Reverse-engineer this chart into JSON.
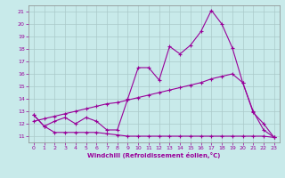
{
  "xlabel": "Windchill (Refroidissement éolien,°C)",
  "background_color": "#c8eaea",
  "line_color": "#990099",
  "grid_color": "#aacaca",
  "x_data": [
    0,
    1,
    2,
    3,
    4,
    5,
    6,
    7,
    8,
    9,
    10,
    11,
    12,
    13,
    14,
    15,
    16,
    17,
    18,
    19,
    20,
    21,
    22,
    23
  ],
  "y_upper": [
    12.7,
    11.8,
    12.2,
    12.5,
    12.0,
    12.5,
    12.2,
    11.5,
    11.5,
    14.0,
    16.5,
    16.5,
    15.5,
    18.2,
    17.6,
    18.3,
    19.4,
    21.1,
    20.0,
    18.1,
    15.3,
    12.9,
    12.0,
    10.9
  ],
  "y_middle": [
    12.2,
    12.4,
    12.6,
    12.8,
    13.0,
    13.2,
    13.4,
    13.6,
    13.7,
    13.9,
    14.1,
    14.3,
    14.5,
    14.7,
    14.9,
    15.1,
    15.3,
    15.6,
    15.8,
    16.0,
    15.3,
    13.0,
    11.5,
    10.9
  ],
  "y_lower": [
    12.7,
    11.8,
    11.3,
    11.3,
    11.3,
    11.3,
    11.3,
    11.2,
    11.1,
    11.0,
    11.0,
    11.0,
    11.0,
    11.0,
    11.0,
    11.0,
    11.0,
    11.0,
    11.0,
    11.0,
    11.0,
    11.0,
    11.0,
    10.9
  ],
  "ylim": [
    10.5,
    21.5
  ],
  "xlim": [
    -0.5,
    23.5
  ],
  "yticks": [
    11,
    12,
    13,
    14,
    15,
    16,
    17,
    18,
    19,
    20,
    21
  ],
  "xticks": [
    0,
    1,
    2,
    3,
    4,
    5,
    6,
    7,
    8,
    9,
    10,
    11,
    12,
    13,
    14,
    15,
    16,
    17,
    18,
    19,
    20,
    21,
    22,
    23
  ]
}
